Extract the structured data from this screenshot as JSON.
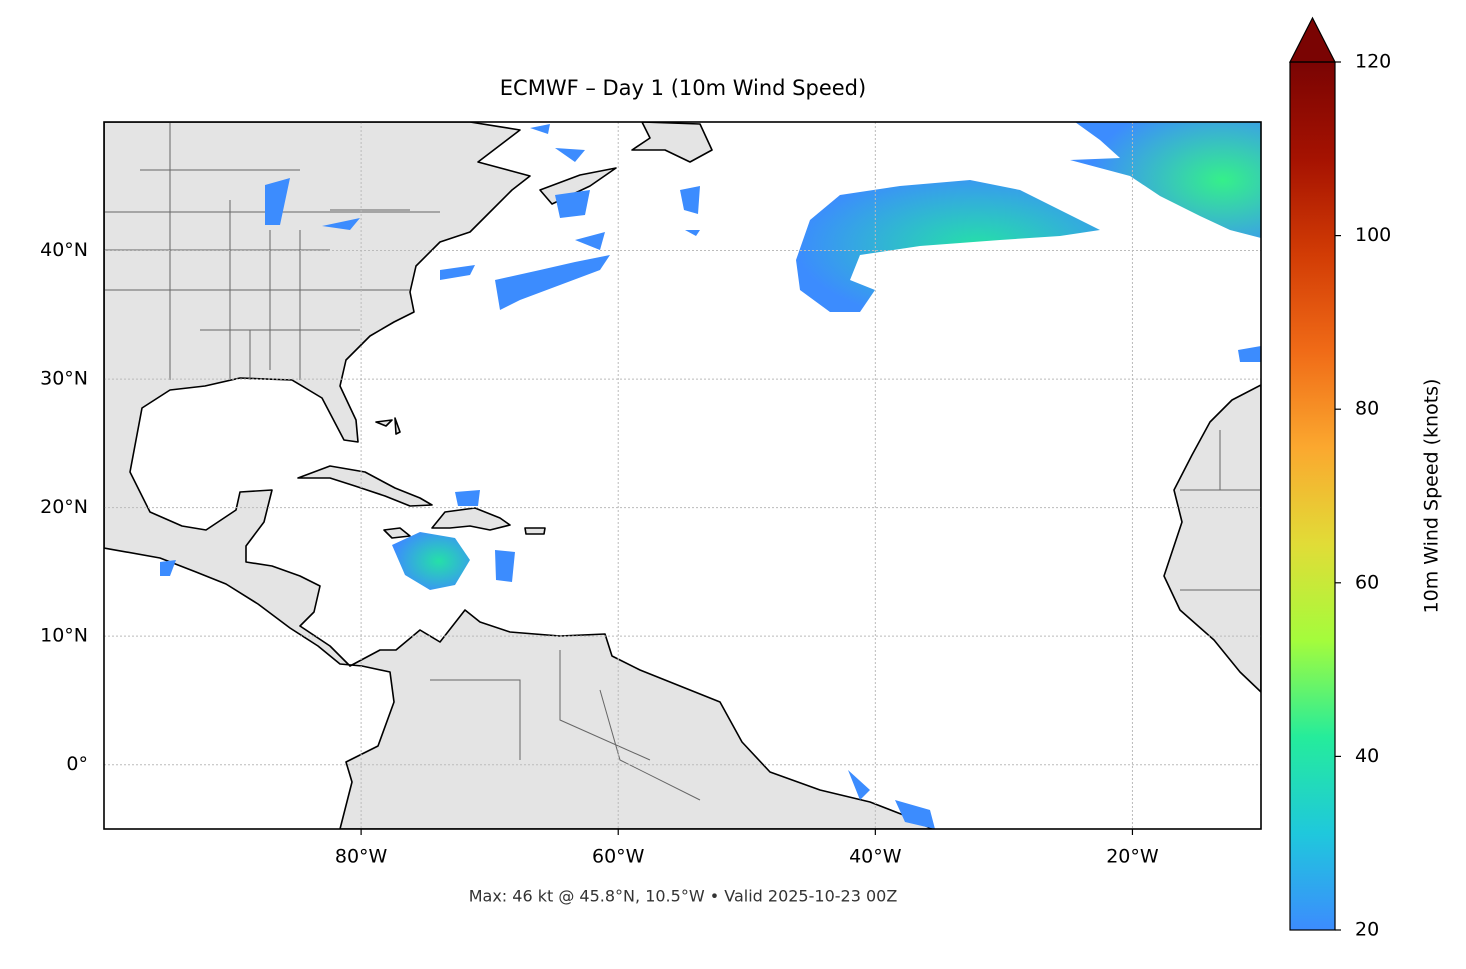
{
  "chart_data": {
    "type": "map",
    "title": "ECMWF – Day 1 (10m Wind Speed)",
    "footnote": "Max: 46 kt @ 45.8°N, 10.5°W • Valid 2025-10-23 00Z",
    "xlim": [
      -100,
      -10
    ],
    "ylim": [
      -5,
      50
    ],
    "xticks": [
      {
        "value": -80,
        "label": "80°W"
      },
      {
        "value": -60,
        "label": "60°W"
      },
      {
        "value": -40,
        "label": "40°W"
      },
      {
        "value": -20,
        "label": "20°W"
      }
    ],
    "yticks": [
      {
        "value": 0,
        "label": "0°"
      },
      {
        "value": 10,
        "label": "10°N"
      },
      {
        "value": 20,
        "label": "20°N"
      },
      {
        "value": 30,
        "label": "30°N"
      },
      {
        "value": 40,
        "label": "40°N"
      }
    ],
    "grid": true,
    "colorbar": {
      "label": "10m Wind Speed (knots)",
      "lim": [
        20,
        120
      ],
      "ticks": [
        20,
        40,
        60,
        80,
        100,
        120
      ],
      "extend": "max",
      "colormap": [
        "#3c8cfe",
        "#1fc8dc",
        "#25ec9b",
        "#a4fc3c",
        "#e1dc37",
        "#fba82f",
        "#f06b17",
        "#d23c05",
        "#a51201",
        "#7a0403"
      ]
    }
  }
}
